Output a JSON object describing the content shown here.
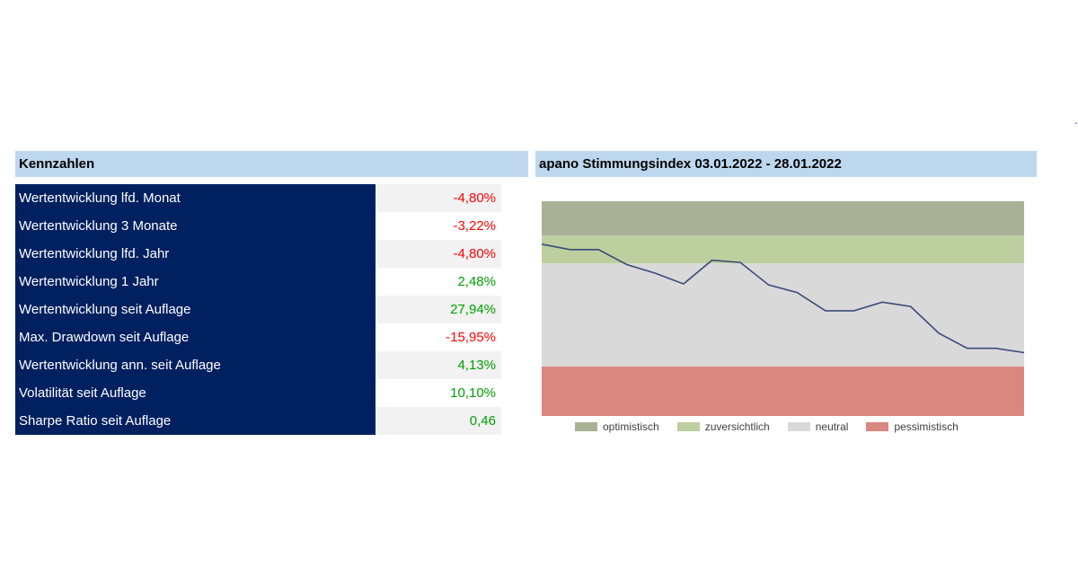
{
  "kennzahlen": {
    "title": "Kennzahlen",
    "rows": [
      {
        "label": "Wertentwicklung lfd. Monat",
        "value": "-4,80%",
        "sign": "neg"
      },
      {
        "label": "Wertentwicklung 3 Monate",
        "value": "-3,22%",
        "sign": "neg"
      },
      {
        "label": "Wertentwicklung lfd. Jahr",
        "value": "-4,80%",
        "sign": "neg"
      },
      {
        "label": "Wertentwicklung 1 Jahr",
        "value": "2,48%",
        "sign": "pos"
      },
      {
        "label": "Wertentwicklung seit Auflage",
        "value": "27,94%",
        "sign": "pos"
      },
      {
        "label": "Max. Drawdown seit Auflage",
        "value": "-15,95%",
        "sign": "neg"
      },
      {
        "label": "Wertentwicklung ann. seit Auflage",
        "value": "4,13%",
        "sign": "pos"
      },
      {
        "label": "Volatilität seit Auflage",
        "value": "10,10%",
        "sign": "pos"
      },
      {
        "label": "Sharpe Ratio seit Auflage",
        "value": "0,46",
        "sign": "pos"
      }
    ]
  },
  "colors": {
    "header_bg": "#bdd7ee",
    "label_bg": "#002060",
    "negative": "#ff0000",
    "positive": "#00a000",
    "line": "#3b4a7a"
  },
  "chart_data": {
    "type": "line",
    "title": "apano Stimmungsindex 03.01.2022 - 28.01.2022",
    "ylim": [
      0,
      100
    ],
    "bands": [
      {
        "name": "optimistisch",
        "from": 84,
        "to": 100,
        "color": "#a9b096"
      },
      {
        "name": "zuversichtlich",
        "from": 71,
        "to": 84,
        "color": "#bdcf9e"
      },
      {
        "name": "neutral",
        "from": 23,
        "to": 71,
        "color": "#d9d9d9"
      },
      {
        "name": "pessimistisch",
        "from": 0,
        "to": 23,
        "color": "#d9877f"
      }
    ],
    "series": [
      {
        "values": [
          80,
          77.5,
          77.5,
          70.5,
          66.5,
          61.5,
          72.5,
          71.5,
          61,
          57.5,
          49,
          49,
          53,
          51,
          38.5,
          31.5,
          31.5,
          29.5
        ]
      }
    ],
    "grid": false,
    "legend_position": "bottom"
  }
}
